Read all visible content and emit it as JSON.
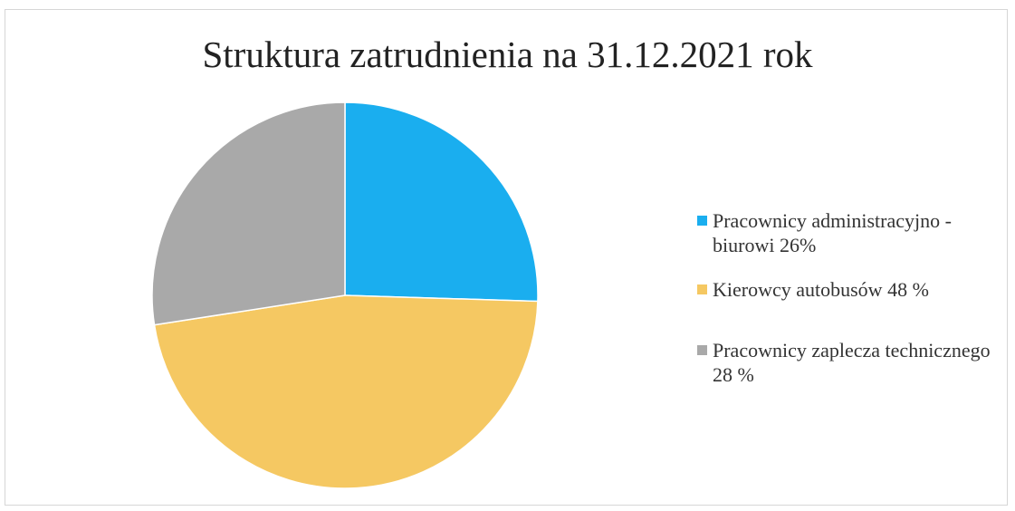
{
  "chart_data": {
    "type": "pie",
    "title": "Struktura zatrudnienia na 31.12.2021 rok",
    "categories": [
      "Pracownicy administracyjno - biurowi 26%",
      "Kierowcy autobusów 48 %",
      "Pracownicy zaplecza technicznego 28 %"
    ],
    "values": [
      26,
      48,
      28
    ],
    "colors": [
      "#1aaeef",
      "#f5c862",
      "#a9a9a9"
    ],
    "legend": "right"
  }
}
